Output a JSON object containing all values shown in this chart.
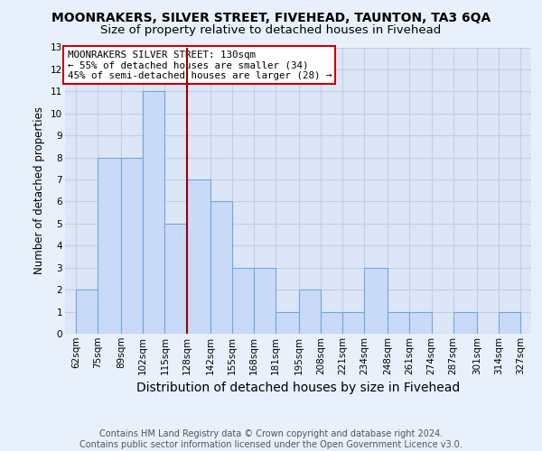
{
  "title": "MOONRAKERS, SILVER STREET, FIVEHEAD, TAUNTON, TA3 6QA",
  "subtitle": "Size of property relative to detached houses in Fivehead",
  "xlabel": "Distribution of detached houses by size in Fivehead",
  "ylabel": "Number of detached properties",
  "bar_edges": [
    62,
    75,
    89,
    102,
    115,
    128,
    142,
    155,
    168,
    181,
    195,
    208,
    221,
    234,
    248,
    261,
    274,
    287,
    301,
    314,
    327
  ],
  "bar_heights": [
    2,
    8,
    8,
    11,
    5,
    7,
    6,
    3,
    3,
    1,
    2,
    1,
    1,
    3,
    1,
    1,
    0,
    1,
    0,
    1
  ],
  "bar_facecolor": "#c9daf8",
  "bar_edgecolor": "#6fa8dc",
  "vline_x": 128,
  "vline_color": "#990000",
  "ylim": [
    0,
    13
  ],
  "yticks": [
    0,
    1,
    2,
    3,
    4,
    5,
    6,
    7,
    8,
    9,
    10,
    11,
    12,
    13
  ],
  "xtick_labels": [
    "62sqm",
    "75sqm",
    "89sqm",
    "102sqm",
    "115sqm",
    "128sqm",
    "142sqm",
    "155sqm",
    "168sqm",
    "181sqm",
    "195sqm",
    "208sqm",
    "221sqm",
    "234sqm",
    "248sqm",
    "261sqm",
    "274sqm",
    "287sqm",
    "301sqm",
    "314sqm",
    "327sqm"
  ],
  "annotation_title": "MOONRAKERS SILVER STREET: 130sqm",
  "annotation_line1": "← 55% of detached houses are smaller (34)",
  "annotation_line2": "45% of semi-detached houses are larger (28) →",
  "annotation_box_color": "#ffffff",
  "annotation_box_edge": "#cc0000",
  "footer_line1": "Contains HM Land Registry data © Crown copyright and database right 2024.",
  "footer_line2": "Contains public sector information licensed under the Open Government Licence v3.0.",
  "bg_color": "#e8f0fb",
  "plot_bg_color": "#dce6f7",
  "grid_color": "#c0cfe8",
  "title_fontsize": 10,
  "subtitle_fontsize": 9.5,
  "xlabel_fontsize": 10,
  "ylabel_fontsize": 8.5,
  "tick_fontsize": 7.5,
  "footer_fontsize": 7
}
